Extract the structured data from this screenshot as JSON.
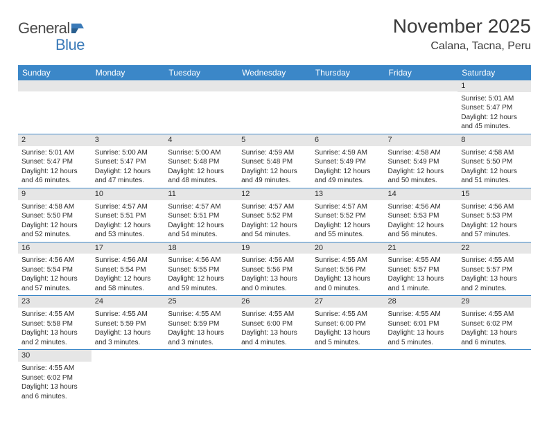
{
  "logo": {
    "text1": "General",
    "text2": "Blue"
  },
  "title": "November 2025",
  "location": "Calana, Tacna, Peru",
  "colors": {
    "header_bg": "#3b87c8",
    "header_text": "#ffffff",
    "daynum_bg": "#e6e6e6",
    "cell_border": "#3b87c8",
    "text": "#2a2a2a",
    "logo_gray": "#4a4a4a",
    "logo_blue": "#3a7ab8",
    "title_color": "#3a3a3a"
  },
  "weekdays": [
    "Sunday",
    "Monday",
    "Tuesday",
    "Wednesday",
    "Thursday",
    "Friday",
    "Saturday"
  ],
  "cells": [
    null,
    null,
    null,
    null,
    null,
    null,
    {
      "n": "1",
      "sr": "5:01 AM",
      "ss": "5:47 PM",
      "dl": "12 hours and 45 minutes."
    },
    {
      "n": "2",
      "sr": "5:01 AM",
      "ss": "5:47 PM",
      "dl": "12 hours and 46 minutes."
    },
    {
      "n": "3",
      "sr": "5:00 AM",
      "ss": "5:47 PM",
      "dl": "12 hours and 47 minutes."
    },
    {
      "n": "4",
      "sr": "5:00 AM",
      "ss": "5:48 PM",
      "dl": "12 hours and 48 minutes."
    },
    {
      "n": "5",
      "sr": "4:59 AM",
      "ss": "5:48 PM",
      "dl": "12 hours and 49 minutes."
    },
    {
      "n": "6",
      "sr": "4:59 AM",
      "ss": "5:49 PM",
      "dl": "12 hours and 49 minutes."
    },
    {
      "n": "7",
      "sr": "4:58 AM",
      "ss": "5:49 PM",
      "dl": "12 hours and 50 minutes."
    },
    {
      "n": "8",
      "sr": "4:58 AM",
      "ss": "5:50 PM",
      "dl": "12 hours and 51 minutes."
    },
    {
      "n": "9",
      "sr": "4:58 AM",
      "ss": "5:50 PM",
      "dl": "12 hours and 52 minutes."
    },
    {
      "n": "10",
      "sr": "4:57 AM",
      "ss": "5:51 PM",
      "dl": "12 hours and 53 minutes."
    },
    {
      "n": "11",
      "sr": "4:57 AM",
      "ss": "5:51 PM",
      "dl": "12 hours and 54 minutes."
    },
    {
      "n": "12",
      "sr": "4:57 AM",
      "ss": "5:52 PM",
      "dl": "12 hours and 54 minutes."
    },
    {
      "n": "13",
      "sr": "4:57 AM",
      "ss": "5:52 PM",
      "dl": "12 hours and 55 minutes."
    },
    {
      "n": "14",
      "sr": "4:56 AM",
      "ss": "5:53 PM",
      "dl": "12 hours and 56 minutes."
    },
    {
      "n": "15",
      "sr": "4:56 AM",
      "ss": "5:53 PM",
      "dl": "12 hours and 57 minutes."
    },
    {
      "n": "16",
      "sr": "4:56 AM",
      "ss": "5:54 PM",
      "dl": "12 hours and 57 minutes."
    },
    {
      "n": "17",
      "sr": "4:56 AM",
      "ss": "5:54 PM",
      "dl": "12 hours and 58 minutes."
    },
    {
      "n": "18",
      "sr": "4:56 AM",
      "ss": "5:55 PM",
      "dl": "12 hours and 59 minutes."
    },
    {
      "n": "19",
      "sr": "4:56 AM",
      "ss": "5:56 PM",
      "dl": "13 hours and 0 minutes."
    },
    {
      "n": "20",
      "sr": "4:55 AM",
      "ss": "5:56 PM",
      "dl": "13 hours and 0 minutes."
    },
    {
      "n": "21",
      "sr": "4:55 AM",
      "ss": "5:57 PM",
      "dl": "13 hours and 1 minute."
    },
    {
      "n": "22",
      "sr": "4:55 AM",
      "ss": "5:57 PM",
      "dl": "13 hours and 2 minutes."
    },
    {
      "n": "23",
      "sr": "4:55 AM",
      "ss": "5:58 PM",
      "dl": "13 hours and 2 minutes."
    },
    {
      "n": "24",
      "sr": "4:55 AM",
      "ss": "5:59 PM",
      "dl": "13 hours and 3 minutes."
    },
    {
      "n": "25",
      "sr": "4:55 AM",
      "ss": "5:59 PM",
      "dl": "13 hours and 3 minutes."
    },
    {
      "n": "26",
      "sr": "4:55 AM",
      "ss": "6:00 PM",
      "dl": "13 hours and 4 minutes."
    },
    {
      "n": "27",
      "sr": "4:55 AM",
      "ss": "6:00 PM",
      "dl": "13 hours and 5 minutes."
    },
    {
      "n": "28",
      "sr": "4:55 AM",
      "ss": "6:01 PM",
      "dl": "13 hours and 5 minutes."
    },
    {
      "n": "29",
      "sr": "4:55 AM",
      "ss": "6:02 PM",
      "dl": "13 hours and 6 minutes."
    },
    {
      "n": "30",
      "sr": "4:55 AM",
      "ss": "6:02 PM",
      "dl": "13 hours and 6 minutes."
    },
    null,
    null,
    null,
    null,
    null,
    null
  ],
  "labels": {
    "sunrise": "Sunrise:",
    "sunset": "Sunset:",
    "daylight": "Daylight:"
  }
}
